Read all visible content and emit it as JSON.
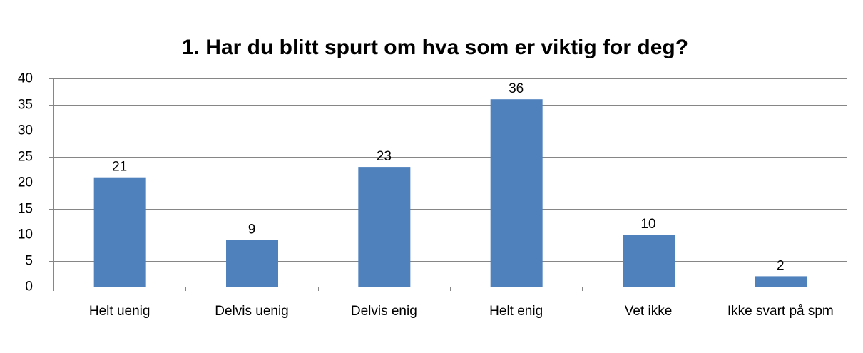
{
  "chart_data": {
    "type": "bar",
    "title": "1. Har du blitt spurt om hva som er viktig for deg?",
    "categories": [
      "Helt uenig",
      "Delvis uenig",
      "Delvis enig",
      "Helt enig",
      "Vet ikke",
      "Ikke svart på spm"
    ],
    "values": [
      21,
      9,
      23,
      36,
      10,
      2
    ],
    "color": "#4f81bd",
    "ylim": [
      0,
      40
    ],
    "yticks": [
      0,
      5,
      10,
      15,
      20,
      25,
      30,
      35,
      40
    ],
    "grid": true
  }
}
